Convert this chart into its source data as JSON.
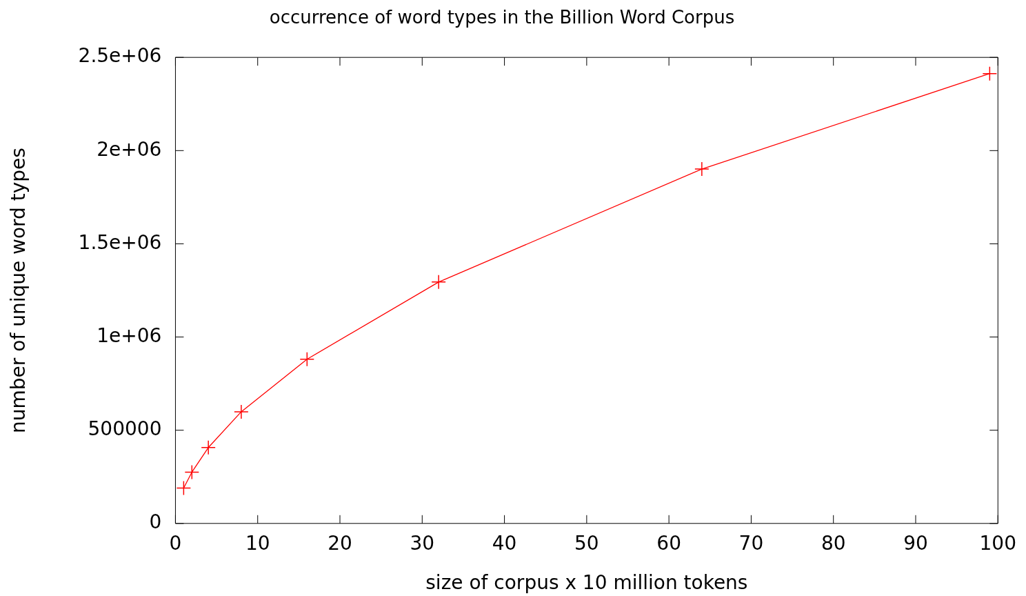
{
  "chart_data": {
    "type": "line",
    "title": "occurrence of word types in the Billion Word Corpus",
    "xlabel": "size of corpus x 10 million tokens",
    "ylabel": "number of unique word types",
    "series": [
      {
        "color": "#ff0000",
        "x": [
          1,
          2,
          4,
          8,
          16,
          32,
          64,
          99
        ],
        "values": [
          190000,
          275000,
          407000,
          599000,
          881000,
          1295000,
          1901000,
          2413000
        ]
      }
    ],
    "xlim": [
      0,
      100
    ],
    "xticks": [
      0,
      10,
      20,
      30,
      40,
      50,
      60,
      70,
      80,
      90,
      100
    ],
    "ylim": [
      0,
      2500000
    ],
    "yticks": [
      {
        "value": 0,
        "label": "0"
      },
      {
        "value": 500000,
        "label": "500000"
      },
      {
        "value": 1000000,
        "label": "1e+06"
      },
      {
        "value": 1500000,
        "label": "1.5e+06"
      },
      {
        "value": 2000000,
        "label": "2e+06"
      },
      {
        "value": 2500000,
        "label": "2.5e+06"
      }
    ],
    "grid": false,
    "legend": false,
    "marker": "cross",
    "line_style": "solid"
  }
}
